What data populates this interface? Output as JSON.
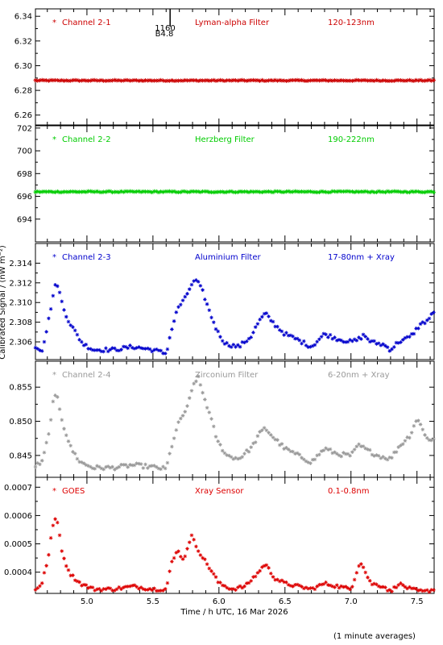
{
  "figure": {
    "ylabel": "Calibrated Signal / (nW m⁻²)",
    "xlabel": "Time / h UTC, 16 Mar 2026",
    "footnote": "(1 minute averages)",
    "event_label_a": "1160",
    "event_label_b": "B4.8"
  },
  "chart_data": [
    {
      "type": "scatter",
      "channel": "Channel 2-1",
      "filter": "Lyman-alpha Filter",
      "band": "120-123nm",
      "color": "#cc0000",
      "ylim": [
        6.252,
        6.346
      ],
      "yticks": [
        6.26,
        6.28,
        6.3,
        6.32,
        6.34
      ],
      "ytick_labels": [
        "6.26",
        "6.28",
        "6.30",
        "6.32",
        "6.34"
      ],
      "xlim": [
        4.61,
        7.63
      ],
      "flat": 6.288,
      "noise": 0.0004,
      "anchors": [
        [
          4.61,
          6.288
        ],
        [
          7.63,
          6.288
        ]
      ]
    },
    {
      "type": "scatter",
      "channel": "Channel 2-2",
      "filter": "Herzberg Filter",
      "band": "190-222nm",
      "color": "#00cc00",
      "ylim": [
        692.0,
        702.2
      ],
      "yticks": [
        694,
        696,
        698,
        700,
        702
      ],
      "ytick_labels": [
        "694",
        "696",
        "698",
        "700",
        "702"
      ],
      "xlim": [
        4.61,
        7.63
      ],
      "flat": 696.4,
      "noise": 0.05,
      "anchors": [
        [
          4.61,
          696.4
        ],
        [
          7.63,
          696.4
        ]
      ]
    },
    {
      "type": "scatter",
      "channel": "Channel 2-3",
      "filter": "Aluminium Filter",
      "band": "17-80nm + Xray",
      "color": "#0000cc",
      "ylim": [
        2.3042,
        2.316
      ],
      "yticks": [
        2.306,
        2.308,
        2.31,
        2.312,
        2.314
      ],
      "ytick_labels": [
        "2.306",
        "2.308",
        "2.310",
        "2.312",
        "2.314"
      ],
      "xlim": [
        4.61,
        7.63
      ],
      "noise": 0.0002,
      "anchors": [
        [
          4.61,
          2.3055
        ],
        [
          4.66,
          2.3052
        ],
        [
          4.7,
          2.3075
        ],
        [
          4.74,
          2.3105
        ],
        [
          4.77,
          2.3122
        ],
        [
          4.82,
          2.3095
        ],
        [
          4.86,
          2.3082
        ],
        [
          4.92,
          2.3068
        ],
        [
          4.97,
          2.3058
        ],
        [
          5.05,
          2.3052
        ],
        [
          5.2,
          2.3052
        ],
        [
          5.35,
          2.3055
        ],
        [
          5.5,
          2.3052
        ],
        [
          5.6,
          2.3048
        ],
        [
          5.64,
          2.3072
        ],
        [
          5.69,
          2.3095
        ],
        [
          5.74,
          2.3103
        ],
        [
          5.79,
          2.3118
        ],
        [
          5.83,
          2.3123
        ],
        [
          5.88,
          2.311
        ],
        [
          5.93,
          2.309
        ],
        [
          5.99,
          2.307
        ],
        [
          6.05,
          2.3058
        ],
        [
          6.15,
          2.3055
        ],
        [
          6.24,
          2.3065
        ],
        [
          6.3,
          2.308
        ],
        [
          6.35,
          2.3089
        ],
        [
          6.42,
          2.3078
        ],
        [
          6.5,
          2.3068
        ],
        [
          6.6,
          2.3062
        ],
        [
          6.7,
          2.3055
        ],
        [
          6.8,
          2.3068
        ],
        [
          6.9,
          2.3063
        ],
        [
          7.0,
          2.306
        ],
        [
          7.05,
          2.3062
        ],
        [
          7.1,
          2.3067
        ],
        [
          7.15,
          2.306
        ],
        [
          7.25,
          2.3057
        ],
        [
          7.3,
          2.3052
        ],
        [
          7.36,
          2.306
        ],
        [
          7.45,
          2.3065
        ],
        [
          7.52,
          2.3077
        ],
        [
          7.58,
          2.3082
        ],
        [
          7.63,
          2.309
        ]
      ]
    },
    {
      "type": "scatter",
      "channel": "Channel 2-4",
      "filter": "Zirconium Filter",
      "band": "6-20nm + Xray",
      "color": "#999999",
      "ylim": [
        0.8418,
        0.8588
      ],
      "yticks": [
        0.845,
        0.85,
        0.855
      ],
      "ytick_labels": [
        "0.845",
        "0.850",
        "0.855"
      ],
      "xlim": [
        4.61,
        7.63
      ],
      "noise": 0.0003,
      "anchors": [
        [
          4.61,
          0.8435
        ],
        [
          4.66,
          0.844
        ],
        [
          4.71,
          0.848
        ],
        [
          4.74,
          0.8525
        ],
        [
          4.77,
          0.854
        ],
        [
          4.82,
          0.8495
        ],
        [
          4.88,
          0.846
        ],
        [
          4.95,
          0.844
        ],
        [
          5.05,
          0.8432
        ],
        [
          5.2,
          0.8432
        ],
        [
          5.35,
          0.8436
        ],
        [
          5.5,
          0.8433
        ],
        [
          5.6,
          0.843
        ],
        [
          5.65,
          0.847
        ],
        [
          5.7,
          0.85
        ],
        [
          5.76,
          0.852
        ],
        [
          5.81,
          0.8555
        ],
        [
          5.84,
          0.8565
        ],
        [
          5.88,
          0.854
        ],
        [
          5.93,
          0.851
        ],
        [
          5.99,
          0.847
        ],
        [
          6.06,
          0.845
        ],
        [
          6.15,
          0.8445
        ],
        [
          6.25,
          0.8462
        ],
        [
          6.3,
          0.848
        ],
        [
          6.35,
          0.849
        ],
        [
          6.42,
          0.8475
        ],
        [
          6.5,
          0.846
        ],
        [
          6.6,
          0.845
        ],
        [
          6.7,
          0.844
        ],
        [
          6.8,
          0.846
        ],
        [
          6.9,
          0.8452
        ],
        [
          7.0,
          0.845
        ],
        [
          7.06,
          0.8465
        ],
        [
          7.12,
          0.8458
        ],
        [
          7.2,
          0.845
        ],
        [
          7.3,
          0.8445
        ],
        [
          7.36,
          0.8462
        ],
        [
          7.45,
          0.848
        ],
        [
          7.5,
          0.8505
        ],
        [
          7.55,
          0.8485
        ],
        [
          7.6,
          0.847
        ],
        [
          7.63,
          0.8475
        ]
      ]
    },
    {
      "type": "scatter",
      "channel": "GOES",
      "filter": "Xray Sensor",
      "band": "0.1-0.8nm",
      "color": "#dd0000",
      "ylim": [
        0.000325,
        0.000735
      ],
      "yticks": [
        0.0004,
        0.0005,
        0.0006,
        0.0007
      ],
      "ytick_labels": [
        "0.0004",
        "0.0005",
        "0.0006",
        "0.0007"
      ],
      "xlim": [
        4.61,
        7.63
      ],
      "noise": 6e-06,
      "anchors": [
        [
          4.61,
          0.00034
        ],
        [
          4.66,
          0.00036
        ],
        [
          4.71,
          0.00046
        ],
        [
          4.74,
          0.00056
        ],
        [
          4.77,
          0.0006
        ],
        [
          4.82,
          0.00045
        ],
        [
          4.88,
          0.00039
        ],
        [
          4.95,
          0.00036
        ],
        [
          5.05,
          0.00034
        ],
        [
          5.2,
          0.00034
        ],
        [
          5.35,
          0.00035
        ],
        [
          5.5,
          0.00034
        ],
        [
          5.6,
          0.00034
        ],
        [
          5.64,
          0.00043
        ],
        [
          5.69,
          0.00048
        ],
        [
          5.73,
          0.00044
        ],
        [
          5.79,
          0.00053
        ],
        [
          5.83,
          0.00049
        ],
        [
          5.88,
          0.00045
        ],
        [
          5.95,
          0.0004
        ],
        [
          6.0,
          0.00036
        ],
        [
          6.1,
          0.00034
        ],
        [
          6.2,
          0.00035
        ],
        [
          6.3,
          0.0004
        ],
        [
          6.35,
          0.00043
        ],
        [
          6.42,
          0.00038
        ],
        [
          6.5,
          0.00036
        ],
        [
          6.6,
          0.00035
        ],
        [
          6.7,
          0.00034
        ],
        [
          6.8,
          0.00036
        ],
        [
          6.9,
          0.00035
        ],
        [
          7.0,
          0.00034
        ],
        [
          7.07,
          0.00044
        ],
        [
          7.15,
          0.00036
        ],
        [
          7.25,
          0.00035
        ],
        [
          7.3,
          0.00033
        ],
        [
          7.36,
          0.00036
        ],
        [
          7.45,
          0.00034
        ],
        [
          7.55,
          0.00033
        ],
        [
          7.63,
          0.00034
        ]
      ]
    }
  ],
  "xaxis": {
    "range": [
      4.61,
      7.63
    ],
    "ticks": [
      5.0,
      5.5,
      6.0,
      6.5,
      7.0,
      7.5
    ],
    "tick_labels": [
      "5.0",
      "5.5",
      "6.0",
      "6.5",
      "7.0",
      "7.5"
    ],
    "event_time": 5.63
  }
}
